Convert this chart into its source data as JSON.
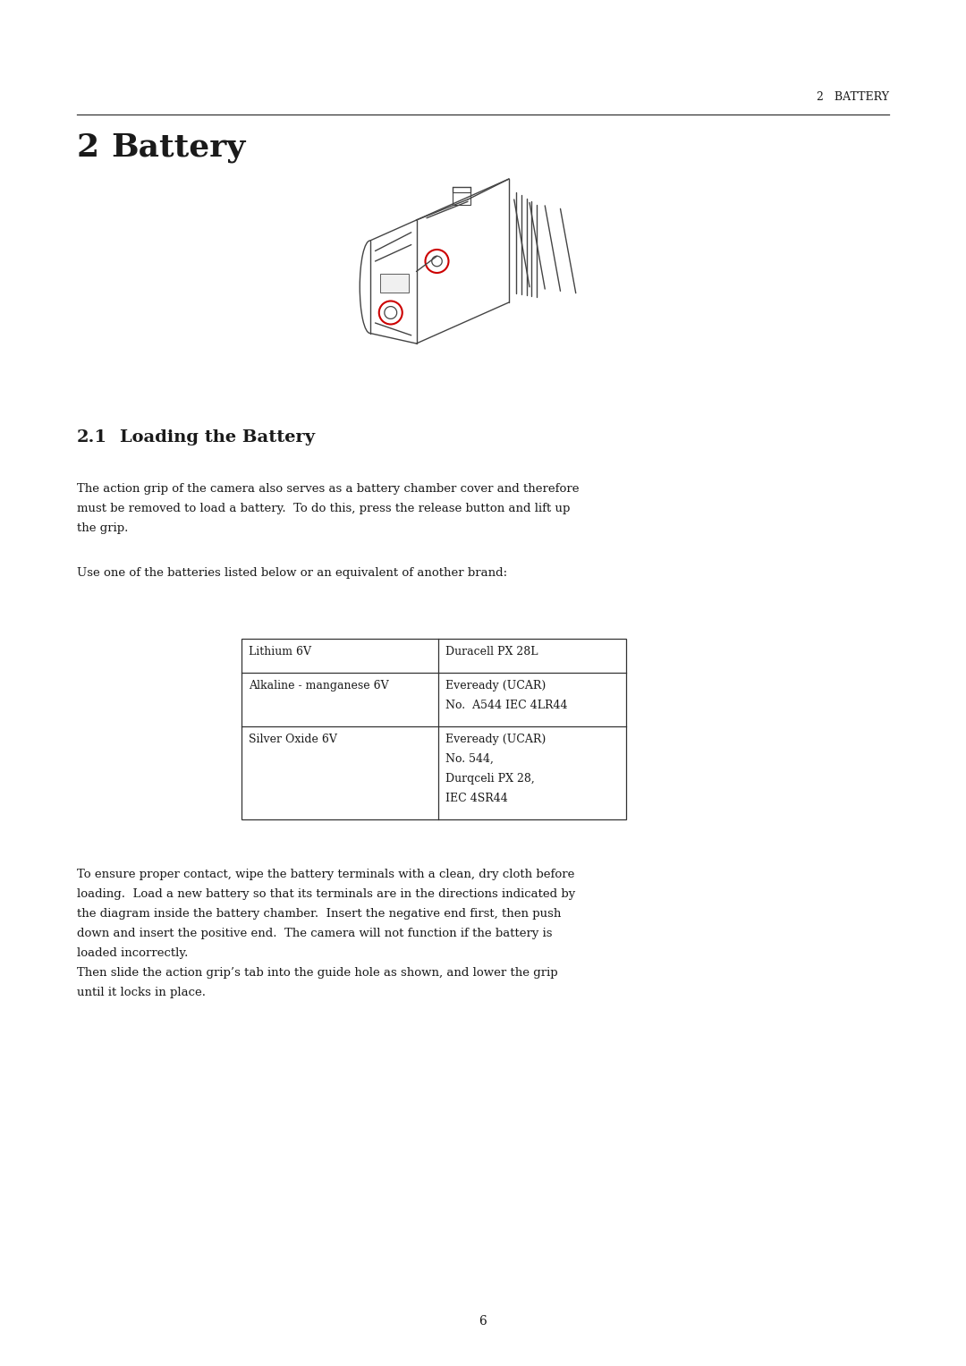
{
  "bg_color": "#ffffff",
  "page_width": 10.8,
  "page_height": 15.27,
  "dpi": 100,
  "header_text": "2   BATTERY",
  "chapter_num": "2",
  "chapter_title": "Battery",
  "section_num": "2.1",
  "section_title": "Loading the Battery",
  "para1_lines": [
    "The action grip of the camera also serves as a battery chamber cover and therefore",
    "must be removed to load a battery.  To do this, press the release button and lift up",
    "the grip."
  ],
  "para2": "Use one of the batteries listed below or an equivalent of another brand:",
  "table_left": [
    "Lithium 6V",
    "Alkaline - manganese 6V",
    "Silver Oxide 6V"
  ],
  "table_right": [
    [
      "Duracell PX 28L"
    ],
    [
      "Eveready (UCAR)",
      "No.  A544 IEC 4LR44"
    ],
    [
      "Eveready (UCAR)",
      "No. 544,",
      "Durqceli PX 28,",
      "IEC 4SR44"
    ]
  ],
  "para3_lines": [
    "To ensure proper contact, wipe the battery terminals with a clean, dry cloth before",
    "loading.  Load a new battery so that its terminals are in the directions indicated by",
    "the diagram inside the battery chamber.  Insert the negative end first, then push",
    "down and insert the positive end.  The camera will not function if the battery is",
    "loaded incorrectly."
  ],
  "para4_lines": [
    "Then slide the action grip’s tab into the guide hole as shown, and lower the grip",
    "until it locks in place."
  ],
  "page_number": "6",
  "font_color": "#1a1a1a",
  "line_color": "#333333",
  "sketch_color": "#444444",
  "red_circle_color": "#cc0000"
}
